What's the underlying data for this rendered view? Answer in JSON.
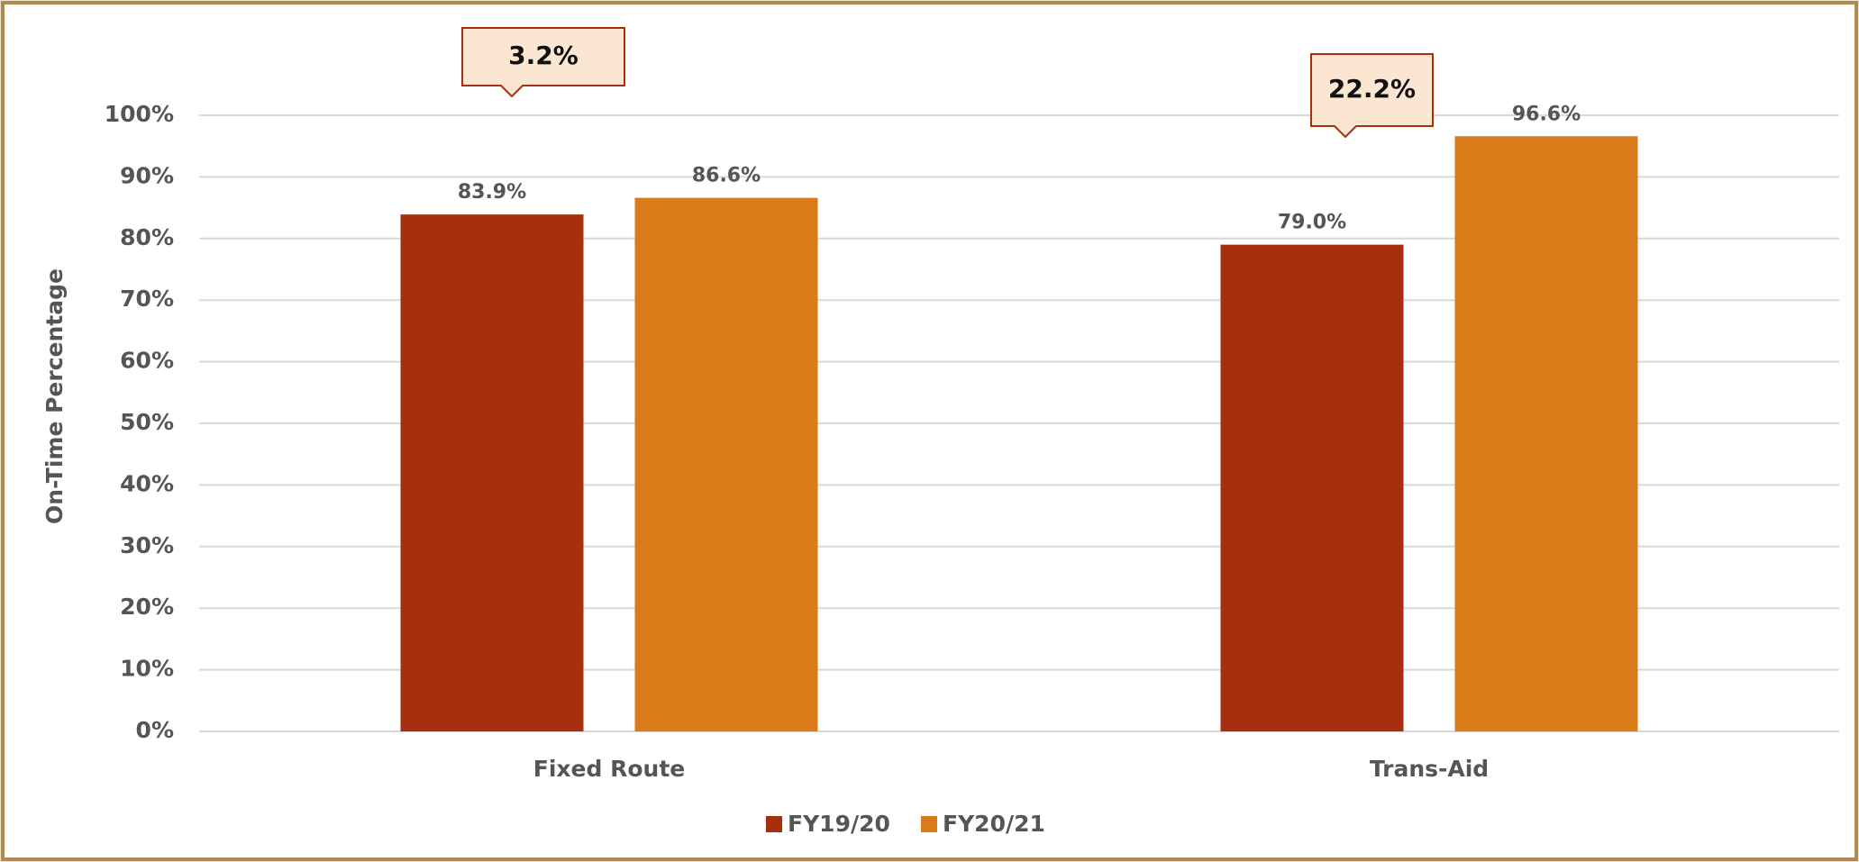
{
  "chart_data": {
    "type": "bar",
    "categories": [
      "Fixed Route",
      "Trans-Aid"
    ],
    "series": [
      {
        "name": "FY19/20",
        "color": "#a52f0f",
        "values": [
          83.9,
          79.0
        ],
        "value_labels": [
          "83.9%",
          "79.0%"
        ]
      },
      {
        "name": "FY20/21",
        "color": "#d97b18",
        "values": [
          86.6,
          96.6
        ],
        "value_labels": [
          "86.6%",
          "96.6%"
        ]
      }
    ],
    "y_axis_label": "On-Time Percentage",
    "ylim": [
      0,
      100
    ],
    "yticks": [
      {
        "value": 0,
        "label": "0%"
      },
      {
        "value": 10,
        "label": "10%"
      },
      {
        "value": 20,
        "label": "20%"
      },
      {
        "value": 30,
        "label": "30%"
      },
      {
        "value": 40,
        "label": "40%"
      },
      {
        "value": 50,
        "label": "50%"
      },
      {
        "value": 60,
        "label": "60%"
      },
      {
        "value": 70,
        "label": "70%"
      },
      {
        "value": 80,
        "label": "80%"
      },
      {
        "value": 90,
        "label": "90%"
      },
      {
        "value": 100,
        "label": "100%"
      }
    ],
    "grid": true,
    "legend": "bottom",
    "annotations": [
      "3.2%",
      "22.2%"
    ]
  }
}
